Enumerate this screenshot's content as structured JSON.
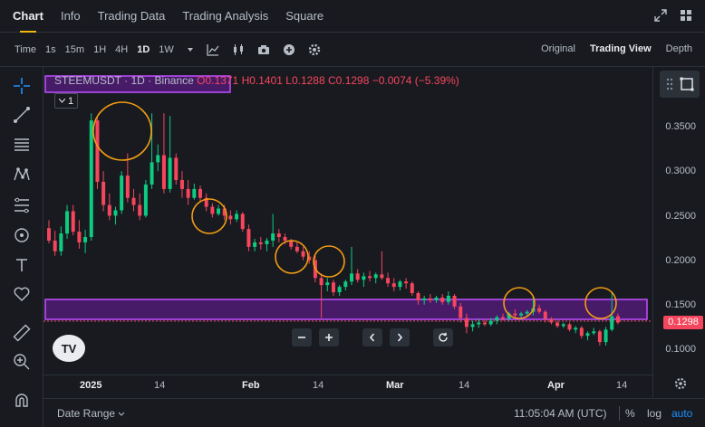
{
  "tabs": [
    "Chart",
    "Info",
    "Trading Data",
    "Trading Analysis",
    "Square"
  ],
  "active_tab": "Chart",
  "toolbar": {
    "time_label": "Time",
    "intervals": [
      "1s",
      "15m",
      "1H",
      "4H",
      "1D",
      "1W"
    ],
    "active_interval": "1D",
    "view_modes": [
      "Original",
      "Trading View",
      "Depth"
    ],
    "active_view": "Trading View"
  },
  "legend": {
    "symbol": "STEEMUSDT · 1D · Binance",
    "open": "O0.1371",
    "high": "H0.1401",
    "low": "L0.1288",
    "close": "C0.1298",
    "change": "−0.0074 (−5.39%)",
    "indicator_count": "1"
  },
  "price_axis": {
    "labels": [
      "0.3500",
      "0.3000",
      "0.2500",
      "0.2000",
      "0.1500",
      "0.1000"
    ],
    "last_price": "0.1298"
  },
  "time_axis": {
    "labels": [
      "2025",
      "14",
      "Feb",
      "14",
      "Mar",
      "14",
      "Apr",
      "14"
    ]
  },
  "bottom_bar": {
    "date_range": "Date Range",
    "clock": "11:05:04 AM (UTC)",
    "percent": "%",
    "log": "log",
    "auto": "auto"
  },
  "colors": {
    "up": "#0ecb81",
    "down": "#f6465d",
    "accent": "#f0b90b",
    "zone": "#a020f0",
    "marker": "#f39c12",
    "background": "#181a20"
  },
  "chart_data": {
    "type": "candlestick",
    "y_range": [
      0.08,
      0.38
    ],
    "ohlc": [
      [
        0.236,
        0.245,
        0.219,
        0.222
      ],
      [
        0.222,
        0.233,
        0.205,
        0.21
      ],
      [
        0.21,
        0.238,
        0.205,
        0.23
      ],
      [
        0.23,
        0.262,
        0.224,
        0.255
      ],
      [
        0.255,
        0.262,
        0.228,
        0.232
      ],
      [
        0.232,
        0.245,
        0.213,
        0.22
      ],
      [
        0.22,
        0.234,
        0.208,
        0.226
      ],
      [
        0.226,
        0.365,
        0.222,
        0.357
      ],
      [
        0.357,
        0.36,
        0.28,
        0.288
      ],
      [
        0.288,
        0.3,
        0.255,
        0.262
      ],
      [
        0.262,
        0.275,
        0.245,
        0.25
      ],
      [
        0.25,
        0.26,
        0.24,
        0.256
      ],
      [
        0.256,
        0.3,
        0.252,
        0.295
      ],
      [
        0.295,
        0.32,
        0.265,
        0.27
      ],
      [
        0.27,
        0.28,
        0.255,
        0.262
      ],
      [
        0.262,
        0.275,
        0.245,
        0.25
      ],
      [
        0.25,
        0.29,
        0.248,
        0.285
      ],
      [
        0.285,
        0.365,
        0.28,
        0.31
      ],
      [
        0.31,
        0.33,
        0.3,
        0.318
      ],
      [
        0.318,
        0.365,
        0.275,
        0.28
      ],
      [
        0.28,
        0.362,
        0.276,
        0.315
      ],
      [
        0.315,
        0.32,
        0.285,
        0.29
      ],
      [
        0.29,
        0.3,
        0.27,
        0.28
      ],
      [
        0.28,
        0.29,
        0.262,
        0.27
      ],
      [
        0.27,
        0.286,
        0.268,
        0.28
      ],
      [
        0.28,
        0.284,
        0.265,
        0.27
      ],
      [
        0.27,
        0.275,
        0.255,
        0.26
      ],
      [
        0.26,
        0.264,
        0.248,
        0.252
      ],
      [
        0.252,
        0.262,
        0.25,
        0.258
      ],
      [
        0.258,
        0.262,
        0.245,
        0.25
      ],
      [
        0.25,
        0.256,
        0.24,
        0.246
      ],
      [
        0.246,
        0.256,
        0.243,
        0.252
      ],
      [
        0.252,
        0.254,
        0.232,
        0.235
      ],
      [
        0.235,
        0.24,
        0.21,
        0.215
      ],
      [
        0.215,
        0.224,
        0.21,
        0.22
      ],
      [
        0.22,
        0.226,
        0.212,
        0.218
      ],
      [
        0.218,
        0.225,
        0.21,
        0.222
      ],
      [
        0.222,
        0.252,
        0.215,
        0.23
      ],
      [
        0.23,
        0.235,
        0.22,
        0.226
      ],
      [
        0.226,
        0.23,
        0.218,
        0.222
      ],
      [
        0.222,
        0.224,
        0.212,
        0.215
      ],
      [
        0.215,
        0.22,
        0.208,
        0.21
      ],
      [
        0.21,
        0.215,
        0.2,
        0.204
      ],
      [
        0.204,
        0.21,
        0.196,
        0.2
      ],
      [
        0.2,
        0.205,
        0.175,
        0.18
      ],
      [
        0.18,
        0.185,
        0.135,
        0.172
      ],
      [
        0.172,
        0.18,
        0.165,
        0.175
      ],
      [
        0.175,
        0.178,
        0.16,
        0.164
      ],
      [
        0.164,
        0.172,
        0.16,
        0.17
      ],
      [
        0.17,
        0.178,
        0.166,
        0.176
      ],
      [
        0.176,
        0.215,
        0.172,
        0.185
      ],
      [
        0.185,
        0.19,
        0.175,
        0.178
      ],
      [
        0.178,
        0.186,
        0.17,
        0.182
      ],
      [
        0.182,
        0.188,
        0.176,
        0.18
      ],
      [
        0.18,
        0.186,
        0.174,
        0.184
      ],
      [
        0.184,
        0.21,
        0.178,
        0.18
      ],
      [
        0.18,
        0.186,
        0.17,
        0.174
      ],
      [
        0.174,
        0.18,
        0.165,
        0.17
      ],
      [
        0.17,
        0.178,
        0.166,
        0.176
      ],
      [
        0.176,
        0.18,
        0.168,
        0.174
      ],
      [
        0.174,
        0.176,
        0.16,
        0.163
      ],
      [
        0.163,
        0.165,
        0.15,
        0.155
      ],
      [
        0.155,
        0.16,
        0.15,
        0.157
      ],
      [
        0.157,
        0.162,
        0.152,
        0.155
      ],
      [
        0.155,
        0.16,
        0.152,
        0.158
      ],
      [
        0.158,
        0.162,
        0.15,
        0.153
      ],
      [
        0.153,
        0.165,
        0.15,
        0.16
      ],
      [
        0.16,
        0.162,
        0.145,
        0.148
      ],
      [
        0.148,
        0.152,
        0.13,
        0.135
      ],
      [
        0.135,
        0.14,
        0.118,
        0.125
      ],
      [
        0.125,
        0.132,
        0.12,
        0.128
      ],
      [
        0.128,
        0.134,
        0.124,
        0.13
      ],
      [
        0.13,
        0.134,
        0.126,
        0.128
      ],
      [
        0.128,
        0.135,
        0.126,
        0.132
      ],
      [
        0.132,
        0.138,
        0.128,
        0.136
      ],
      [
        0.136,
        0.14,
        0.132,
        0.134
      ],
      [
        0.134,
        0.142,
        0.132,
        0.14
      ],
      [
        0.14,
        0.145,
        0.136,
        0.138
      ],
      [
        0.138,
        0.142,
        0.134,
        0.14
      ],
      [
        0.14,
        0.144,
        0.136,
        0.142
      ],
      [
        0.142,
        0.16,
        0.138,
        0.146
      ],
      [
        0.146,
        0.15,
        0.14,
        0.142
      ],
      [
        0.142,
        0.144,
        0.13,
        0.134
      ],
      [
        0.134,
        0.136,
        0.128,
        0.13
      ],
      [
        0.13,
        0.132,
        0.124,
        0.126
      ],
      [
        0.126,
        0.13,
        0.124,
        0.128
      ],
      [
        0.128,
        0.13,
        0.12,
        0.122
      ],
      [
        0.122,
        0.126,
        0.118,
        0.124
      ],
      [
        0.124,
        0.126,
        0.112,
        0.115
      ],
      [
        0.115,
        0.12,
        0.11,
        0.118
      ],
      [
        0.118,
        0.124,
        0.116,
        0.12
      ],
      [
        0.12,
        0.122,
        0.104,
        0.108
      ],
      [
        0.108,
        0.125,
        0.104,
        0.122
      ],
      [
        0.122,
        0.165,
        0.12,
        0.137
      ],
      [
        0.137,
        0.14,
        0.128,
        0.13
      ]
    ]
  }
}
